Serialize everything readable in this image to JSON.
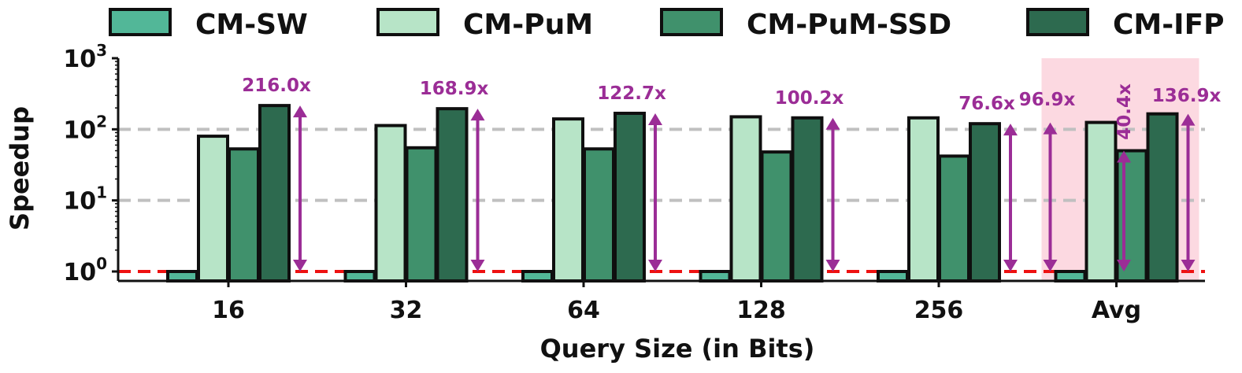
{
  "chart_data": {
    "type": "bar",
    "title": "",
    "xlabel": "Query Size (in Bits)",
    "ylabel": "Speedup",
    "yscale": "log",
    "ylim": [
      0.8,
      1000
    ],
    "yticks": [
      {
        "value": 1,
        "base": "10",
        "exp": "0"
      },
      {
        "value": 10,
        "base": "10",
        "exp": "1"
      },
      {
        "value": 100,
        "base": "10",
        "exp": "2"
      },
      {
        "value": 1000,
        "base": "10",
        "exp": "3"
      }
    ],
    "grid": "horizontal dashed at 10 and 100",
    "baseline": 1,
    "legend_position": "top",
    "categories": [
      "16",
      "32",
      "64",
      "128",
      "256",
      "Avg"
    ],
    "highlight_category": "Avg",
    "series": [
      {
        "name": "CM-SW",
        "color": "#52b798",
        "values": [
          1,
          1,
          1,
          1,
          1,
          1
        ]
      },
      {
        "name": "CM-PuM",
        "color": "#b7e4c7",
        "values": [
          80,
          113,
          140,
          150,
          145,
          125
        ]
      },
      {
        "name": "CM-PuM-SSD",
        "color": "#40916c",
        "values": [
          53,
          55,
          53,
          48,
          42,
          50
        ]
      },
      {
        "name": "CM-IFP",
        "color": "#2d6a4f",
        "values": [
          216.0,
          195,
          168,
          145,
          120,
          165
        ]
      }
    ],
    "annotations": [
      {
        "category": "16",
        "label": "216.0x"
      },
      {
        "category": "32",
        "label": "168.9x"
      },
      {
        "category": "64",
        "label": "122.7x"
      },
      {
        "category": "128",
        "label": "100.2x"
      },
      {
        "category": "256",
        "label": "76.6x"
      },
      {
        "category": "Avg",
        "label": "96.9x"
      },
      {
        "category": "Avg",
        "label": "40.4x"
      },
      {
        "category": "Avg",
        "label": "136.9x"
      }
    ],
    "colors": {
      "annotation": "#9b2d96",
      "baseline_line": "#ee1111",
      "grid": "#c0c0c0",
      "highlight_band": "#fcd9e1"
    }
  }
}
